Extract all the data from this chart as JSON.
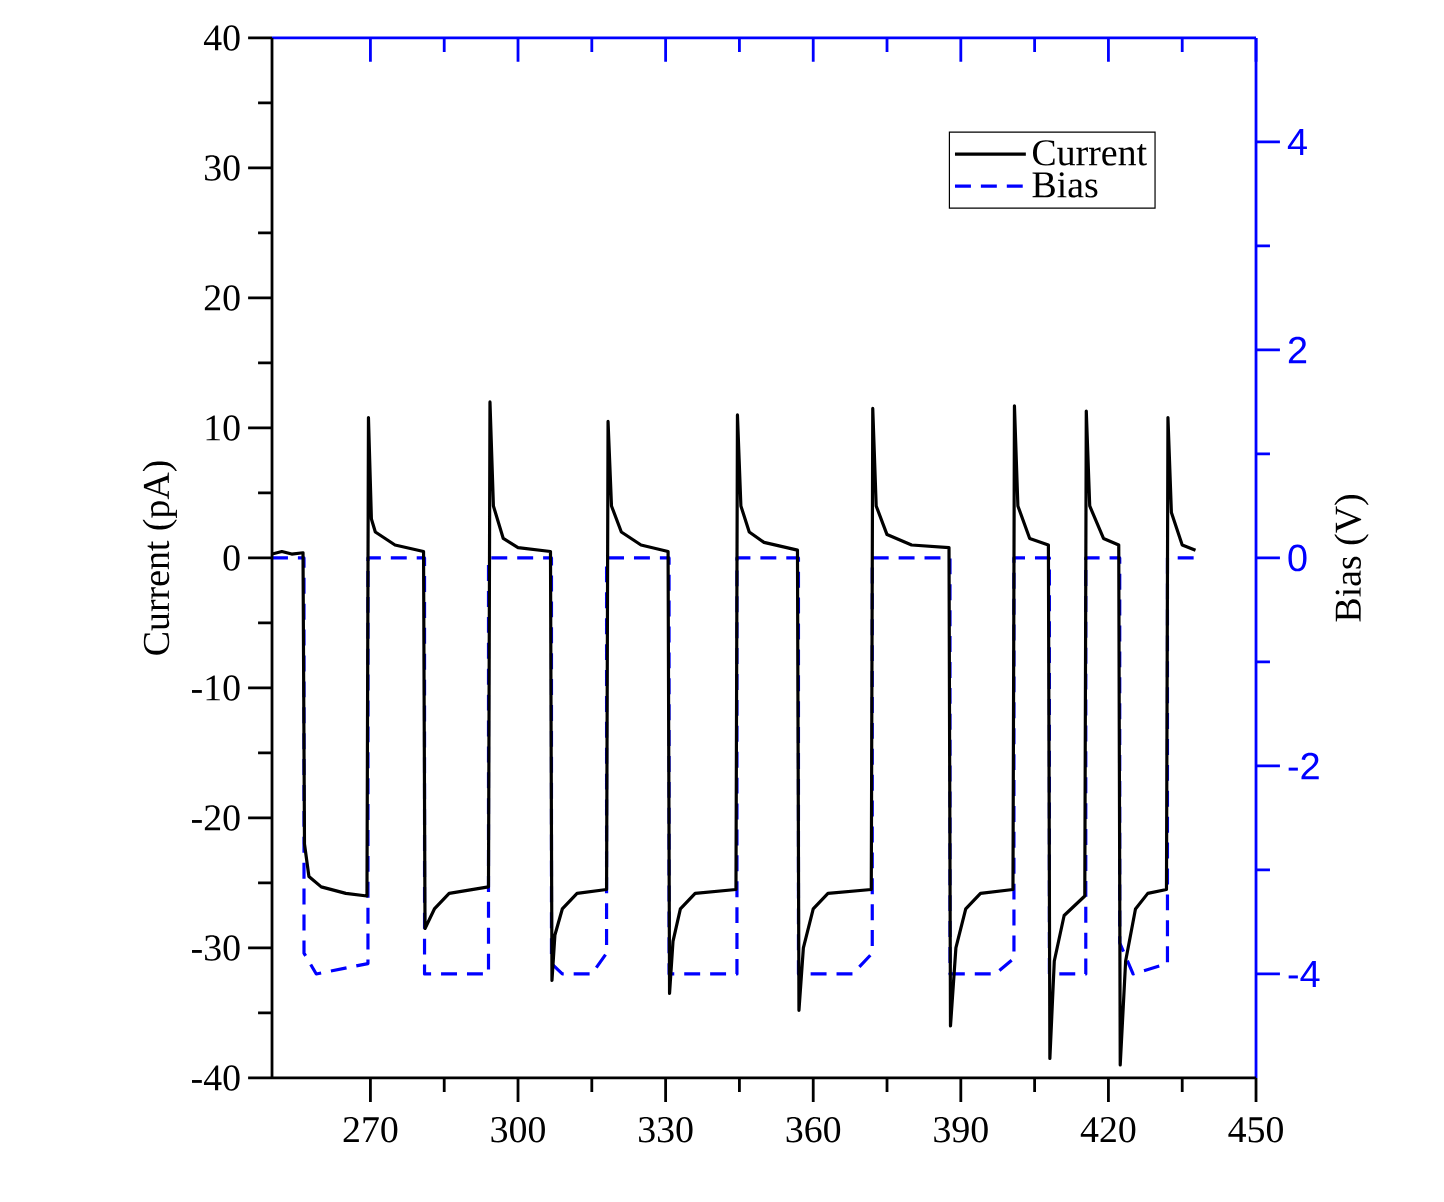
{
  "chart_data": {
    "type": "line",
    "ylabel": "Current (pA)",
    "y2label": "Bias (V)",
    "xlim": [
      250,
      450
    ],
    "xticks": [
      270,
      300,
      330,
      360,
      390,
      420,
      450
    ],
    "ylim": [
      -40,
      40
    ],
    "yticks": [
      -40,
      -30,
      -20,
      -10,
      0,
      10,
      20,
      30,
      40
    ],
    "y2lim": [
      -5,
      5
    ],
    "y2ticks": [
      -4,
      -2,
      0,
      2,
      4
    ],
    "legend": "top right",
    "grid": false,
    "series": [
      {
        "name": "Current",
        "color": "#000000",
        "line_style": "solid",
        "x": [
          250,
          252,
          254,
          256.3,
          256.6,
          257.5,
          260,
          265,
          269.3,
          269.6,
          270.2,
          271,
          275,
          280.8,
          281.1,
          283,
          286,
          294,
          294.3,
          295,
          297,
          300,
          306.6,
          306.9,
          307.5,
          309,
          312,
          318,
          318.3,
          319,
          321,
          325,
          330.5,
          330.8,
          331.5,
          333,
          336,
          344.3,
          344.6,
          345.3,
          347,
          350,
          356.8,
          357.1,
          358,
          360,
          363,
          371.8,
          372.1,
          372.8,
          375,
          380,
          387.6,
          387.9,
          389,
          391,
          394,
          400.6,
          400.9,
          401.6,
          404,
          407.8,
          408.1,
          409,
          411,
          415.2,
          415.5,
          416.2,
          419,
          422.1,
          422.4,
          423.5,
          425.5,
          428,
          431.8,
          432.1,
          432.8,
          435,
          437.7
        ],
        "values": [
          0.3,
          0.5,
          0.3,
          0.4,
          -22,
          -24.5,
          -25.3,
          -25.8,
          -26,
          10.8,
          3,
          2,
          1,
          0.5,
          -28.5,
          -27,
          -25.8,
          -25.3,
          12,
          4,
          1.5,
          0.8,
          0.5,
          -32.5,
          -29,
          -27,
          -25.8,
          -25.5,
          10.5,
          4,
          2,
          1,
          0.5,
          -33.5,
          -29.5,
          -27,
          -25.8,
          -25.5,
          11,
          4,
          2,
          1.2,
          0.6,
          -34.8,
          -30,
          -27,
          -25.8,
          -25.5,
          11.5,
          4,
          1.8,
          1,
          0.8,
          -36,
          -30,
          -27,
          -25.8,
          -25.5,
          11.7,
          4,
          1.5,
          1,
          -38.5,
          -31,
          -27.5,
          -26,
          11.3,
          4,
          1.5,
          1,
          -39,
          -31,
          -27,
          -25.8,
          -25.5,
          10.8,
          3.5,
          1,
          0.6
        ]
      },
      {
        "name": "Bias",
        "color": "#0000ff",
        "line_style": "dashed",
        "axis": "y2",
        "x": [
          250,
          256.5,
          256.5,
          259,
          269.5,
          269.5,
          281,
          281,
          294,
          294,
          306.8,
          306.8,
          309,
          315,
          318,
          318,
          330.7,
          330.7,
          344.5,
          344.5,
          357,
          357,
          368,
          372,
          372,
          387.8,
          387.8,
          397,
          400.8,
          400.8,
          408,
          408,
          415.4,
          415.4,
          422.3,
          422.3,
          425,
          432,
          432,
          437.7
        ],
        "values": [
          0,
          0,
          -3.8,
          -4,
          -3.9,
          0,
          0,
          -4,
          -4,
          0,
          0,
          -3.9,
          -4,
          -4,
          -3.8,
          0,
          0,
          -4,
          -4,
          0,
          0,
          -4,
          -4,
          -3.8,
          0,
          0,
          -4,
          -4,
          -3.85,
          0,
          0,
          -4,
          -4,
          0,
          0,
          -3.7,
          -4,
          -3.9,
          0,
          0
        ]
      }
    ]
  }
}
